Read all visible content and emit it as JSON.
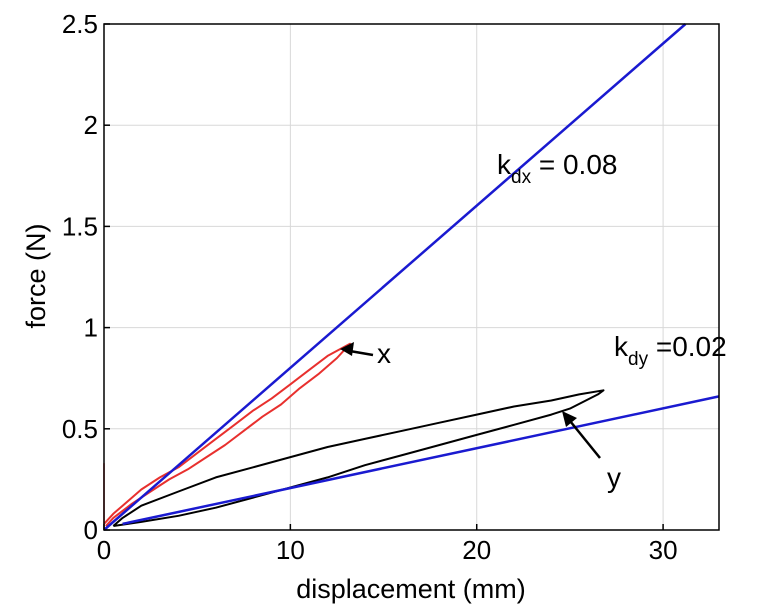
{
  "chart_data": {
    "type": "line",
    "xlabel": "displacement (mm)",
    "ylabel": "force (N)",
    "xlim": [
      0,
      33
    ],
    "ylim": [
      0,
      2.5
    ],
    "xticks": [
      0,
      10,
      20,
      30
    ],
    "yticks": [
      0,
      0.5,
      1,
      1.5,
      2,
      2.5
    ],
    "xtick_labels": [
      "0",
      "10",
      "20",
      "30"
    ],
    "ytick_labels": [
      "0",
      "0.5",
      "1",
      "1.5",
      "2",
      "2.5"
    ],
    "grid": true,
    "series": [
      {
        "color": "#e8302e",
        "style": "line",
        "points": [
          [
            0,
            0.03
          ],
          [
            0.5,
            0.08
          ],
          [
            1,
            0.12
          ],
          [
            2,
            0.2
          ],
          [
            3,
            0.26
          ],
          [
            4,
            0.31
          ],
          [
            5,
            0.38
          ],
          [
            6,
            0.45
          ],
          [
            7,
            0.52
          ],
          [
            8,
            0.59
          ],
          [
            9,
            0.65
          ],
          [
            10,
            0.72
          ],
          [
            11,
            0.79
          ],
          [
            12,
            0.86
          ],
          [
            13.2,
            0.92
          ],
          [
            12.5,
            0.85
          ],
          [
            11.5,
            0.77
          ],
          [
            10.5,
            0.7
          ],
          [
            9.5,
            0.62
          ],
          [
            8.5,
            0.56
          ],
          [
            7.5,
            0.49
          ],
          [
            6.5,
            0.42
          ],
          [
            5.5,
            0.36
          ],
          [
            4.5,
            0.3
          ],
          [
            3.5,
            0.25
          ],
          [
            2.5,
            0.19
          ],
          [
            1.5,
            0.13
          ],
          [
            0.5,
            0.06
          ],
          [
            0.1,
            0.02
          ]
        ],
        "label": "x"
      },
      {
        "color": "#000000",
        "style": "line",
        "points": [
          [
            0.5,
            0.02
          ],
          [
            1,
            0.06
          ],
          [
            2,
            0.12
          ],
          [
            4,
            0.19
          ],
          [
            6,
            0.26
          ],
          [
            8,
            0.31
          ],
          [
            10,
            0.36
          ],
          [
            12,
            0.41
          ],
          [
            14,
            0.45
          ],
          [
            16,
            0.49
          ],
          [
            18,
            0.53
          ],
          [
            20,
            0.57
          ],
          [
            22,
            0.61
          ],
          [
            24,
            0.64
          ],
          [
            25.5,
            0.67
          ],
          [
            26.8,
            0.69
          ],
          [
            26.5,
            0.67
          ],
          [
            25,
            0.6
          ],
          [
            24,
            0.57
          ],
          [
            22,
            0.52
          ],
          [
            20,
            0.47
          ],
          [
            18,
            0.42
          ],
          [
            16,
            0.37
          ],
          [
            14,
            0.32
          ],
          [
            12,
            0.26
          ],
          [
            10,
            0.21
          ],
          [
            8,
            0.16
          ],
          [
            6,
            0.11
          ],
          [
            4,
            0.07
          ],
          [
            2,
            0.04
          ],
          [
            0.5,
            0.02
          ]
        ],
        "label": "y"
      },
      {
        "name": "k_dx fit",
        "color": "#1a1ad0",
        "style": "line",
        "points": [
          [
            0,
            0
          ],
          [
            31.2,
            2.5
          ]
        ]
      },
      {
        "name": "k_dy fit",
        "color": "#1a1ad0",
        "style": "line",
        "points": [
          [
            1,
            0.03
          ],
          [
            33,
            0.66
          ]
        ]
      }
    ],
    "annotations": [
      {
        "id": "kdx",
        "main": "k",
        "sub": "dx",
        "rest": " = 0.08"
      },
      {
        "id": "kdy",
        "main": "k",
        "sub": "dy",
        "rest": " =0.02"
      },
      {
        "id": "x",
        "text": "x"
      },
      {
        "id": "y",
        "text": "y"
      }
    ]
  }
}
